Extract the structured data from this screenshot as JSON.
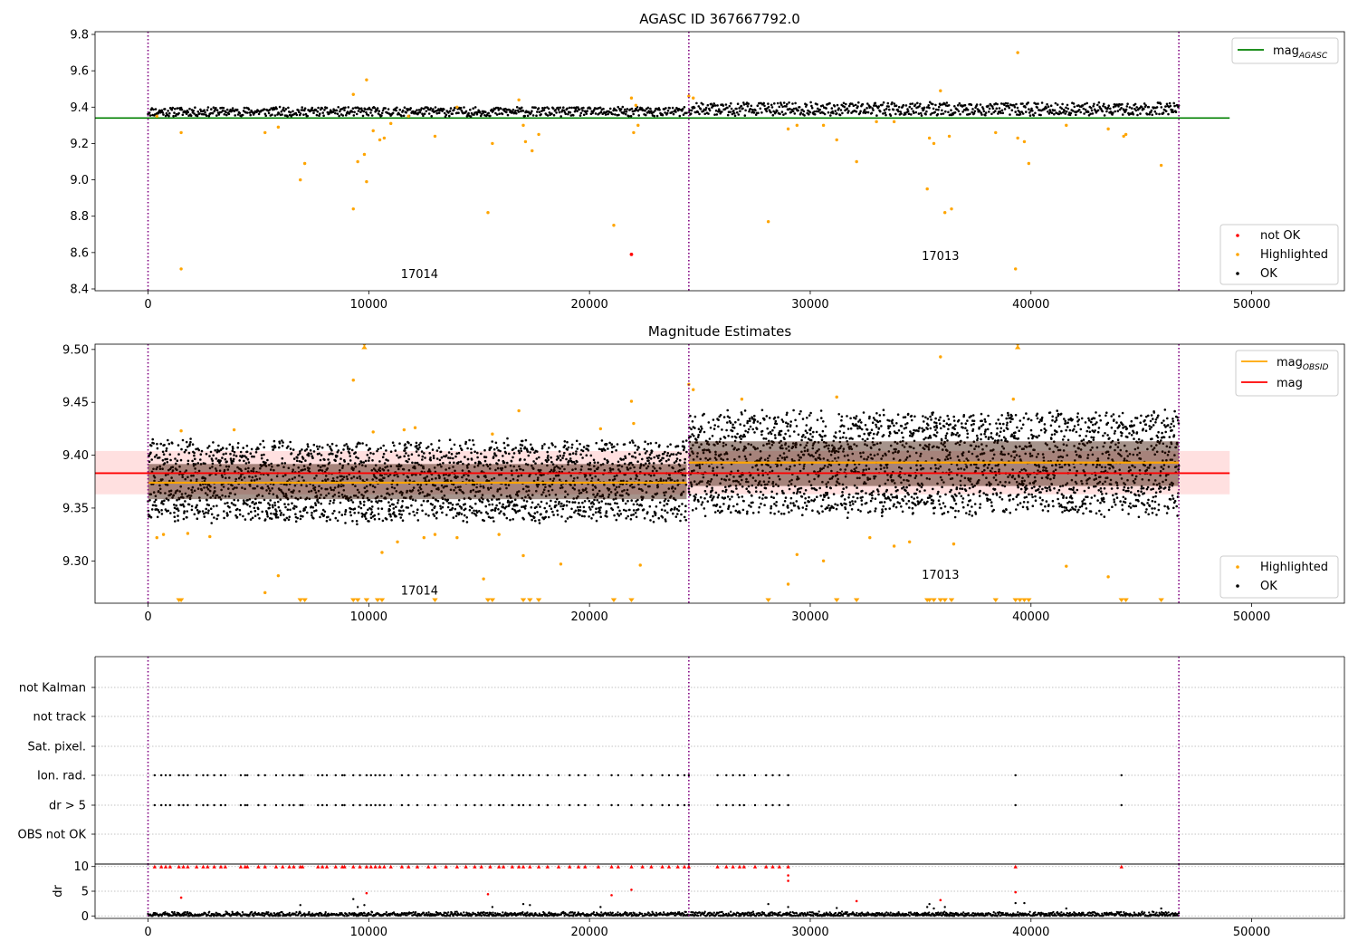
{
  "chart_data": [
    {
      "id": "agasc",
      "type": "scatter",
      "title": "AGASC ID 367667792.0",
      "xlim": [
        -2400,
        54200
      ],
      "ylim": [
        8.39,
        9.815
      ],
      "xticks": [
        0,
        10000,
        20000,
        30000,
        40000,
        50000
      ],
      "yticks": [
        8.4,
        8.6,
        8.8,
        9.0,
        9.2,
        9.4,
        9.6,
        9.8
      ],
      "ytick_labels": [
        "8.4",
        "8.6",
        "8.8",
        "9.0",
        "9.2",
        "9.4",
        "9.6",
        "9.8"
      ],
      "vlines": [
        0,
        24500,
        46700
      ],
      "obsids": [
        {
          "label": "17014",
          "x": 12300,
          "y": 8.46
        },
        {
          "label": "17013",
          "x": 35900,
          "y": 8.56
        }
      ],
      "hline": {
        "name": "mag_AGASC",
        "y": 9.34,
        "x_range": [
          -2400,
          49000
        ],
        "color": "#008000"
      },
      "ok_bands": [
        {
          "x0": 0,
          "x1": 24400,
          "center": 9.375,
          "half_width": 0.025
        },
        {
          "x0": 24500,
          "x1": 46700,
          "center": 9.39,
          "half_width": 0.035
        }
      ],
      "highlighted": [
        [
          400,
          9.35
        ],
        [
          1500,
          8.51
        ],
        [
          1500,
          9.26
        ],
        [
          5300,
          9.26
        ],
        [
          5900,
          9.29
        ],
        [
          6900,
          9.0
        ],
        [
          7100,
          9.09
        ],
        [
          9300,
          8.84
        ],
        [
          9300,
          9.47
        ],
        [
          9500,
          9.1
        ],
        [
          9800,
          9.14
        ],
        [
          9900,
          8.99
        ],
        [
          9900,
          9.55
        ],
        [
          10200,
          9.27
        ],
        [
          10500,
          9.22
        ],
        [
          10700,
          9.23
        ],
        [
          11000,
          9.31
        ],
        [
          11800,
          9.35
        ],
        [
          13000,
          9.24
        ],
        [
          14000,
          9.4
        ],
        [
          15400,
          8.82
        ],
        [
          15600,
          9.2
        ],
        [
          16800,
          9.44
        ],
        [
          17000,
          9.3
        ],
        [
          17100,
          9.21
        ],
        [
          17400,
          9.16
        ],
        [
          17700,
          9.25
        ],
        [
          21100,
          8.75
        ],
        [
          21900,
          9.45
        ],
        [
          22000,
          9.26
        ],
        [
          22200,
          9.3
        ],
        [
          22100,
          9.41
        ],
        [
          24500,
          9.46
        ],
        [
          24700,
          9.45
        ],
        [
          28100,
          8.77
        ],
        [
          29000,
          9.28
        ],
        [
          29400,
          9.3
        ],
        [
          30600,
          9.3
        ],
        [
          31200,
          9.22
        ],
        [
          32100,
          9.1
        ],
        [
          33000,
          9.32
        ],
        [
          33800,
          9.32
        ],
        [
          35300,
          8.95
        ],
        [
          35400,
          9.23
        ],
        [
          35600,
          9.2
        ],
        [
          35900,
          9.49
        ],
        [
          36100,
          8.82
        ],
        [
          36400,
          8.84
        ],
        [
          36300,
          9.24
        ],
        [
          38400,
          9.26
        ],
        [
          39300,
          8.51
        ],
        [
          39400,
          9.7
        ],
        [
          39400,
          9.23
        ],
        [
          39700,
          9.21
        ],
        [
          39900,
          9.09
        ],
        [
          41600,
          9.3
        ],
        [
          43500,
          9.28
        ],
        [
          44200,
          9.24
        ],
        [
          44300,
          9.25
        ],
        [
          45900,
          9.08
        ]
      ],
      "not_ok": [
        [
          21900,
          8.59
        ]
      ],
      "legend_top": [
        "mag_AGASC"
      ],
      "legend_bottom": [
        "not OK",
        "Highlighted",
        "OK"
      ]
    },
    {
      "id": "mag-estimates",
      "type": "scatter",
      "title": "Magnitude Estimates",
      "xlim": [
        -2400,
        54200
      ],
      "ylim": [
        9.26,
        9.505
      ],
      "xticks": [
        0,
        10000,
        20000,
        30000,
        40000,
        50000
      ],
      "yticks": [
        9.3,
        9.35,
        9.4,
        9.45,
        9.5
      ],
      "ytick_labels": [
        "9.30",
        "9.35",
        "9.40",
        "9.45",
        "9.50"
      ],
      "vlines": [
        0,
        24500,
        46700
      ],
      "obsids": [
        {
          "label": "17014",
          "x": 12300,
          "y": 9.268
        },
        {
          "label": "17013",
          "x": 35900,
          "y": 9.283
        }
      ],
      "mag_line": {
        "name": "mag",
        "y": 9.383,
        "band": [
          9.363,
          9.404
        ],
        "x_range": [
          -2400,
          49000
        ],
        "color": "#ff0000"
      },
      "mag_obsid": [
        {
          "x0": 0,
          "x1": 24400,
          "y": 9.374
        },
        {
          "x0": 24500,
          "x1": 46700,
          "y": 9.393
        }
      ],
      "ok_bands": [
        {
          "x0": 0,
          "x1": 24400,
          "center": 9.375,
          "half_width": 0.037
        },
        {
          "x0": 24500,
          "x1": 46700,
          "center": 9.392,
          "half_width": 0.047
        }
      ],
      "highlighted": [
        [
          400,
          9.322
        ],
        [
          700,
          9.325
        ],
        [
          1500,
          9.423
        ],
        [
          1800,
          9.326
        ],
        [
          2800,
          9.323
        ],
        [
          3900,
          9.424
        ],
        [
          5300,
          9.27
        ],
        [
          5900,
          9.286
        ],
        [
          9300,
          9.471
        ],
        [
          9800,
          9.505
        ],
        [
          10200,
          9.422
        ],
        [
          10600,
          9.308
        ],
        [
          11300,
          9.318
        ],
        [
          11600,
          9.424
        ],
        [
          12500,
          9.322
        ],
        [
          12100,
          9.426
        ],
        [
          13000,
          9.325
        ],
        [
          14000,
          9.322
        ],
        [
          15200,
          9.283
        ],
        [
          15600,
          9.42
        ],
        [
          15900,
          9.325
        ],
        [
          16800,
          9.442
        ],
        [
          17000,
          9.305
        ],
        [
          18700,
          9.297
        ],
        [
          20500,
          9.425
        ],
        [
          21900,
          9.451
        ],
        [
          22000,
          9.43
        ],
        [
          22300,
          9.296
        ],
        [
          24500,
          9.467
        ],
        [
          24700,
          9.462
        ],
        [
          26900,
          9.453
        ],
        [
          29000,
          9.278
        ],
        [
          29400,
          9.306
        ],
        [
          30600,
          9.3
        ],
        [
          31200,
          9.455
        ],
        [
          32700,
          9.322
        ],
        [
          33800,
          9.314
        ],
        [
          34500,
          9.318
        ],
        [
          35900,
          9.493
        ],
        [
          36500,
          9.316
        ],
        [
          39200,
          9.453
        ],
        [
          39400,
          9.505
        ],
        [
          41600,
          9.295
        ],
        [
          43500,
          9.285
        ]
      ],
      "below_axis_x": [
        1400,
        1500,
        6900,
        7100,
        9300,
        9500,
        9900,
        10400,
        10600,
        13000,
        15400,
        15600,
        17000,
        17300,
        17700,
        21100,
        21900,
        28100,
        31200,
        32100,
        35300,
        35400,
        35600,
        35900,
        36100,
        36400,
        38400,
        39300,
        39500,
        39700,
        39900,
        44100,
        44300,
        45900
      ],
      "legend_top": [
        "mag_OBSID",
        "mag"
      ],
      "legend_bottom": [
        "Highlighted",
        "OK"
      ]
    },
    {
      "id": "flags",
      "type": "scatter",
      "xlim": [
        -2400,
        54200
      ],
      "xticks": [
        0,
        10000,
        20000,
        30000,
        40000,
        50000
      ],
      "vlines": [
        0,
        24500,
        46700
      ],
      "categories": [
        "not Kalman",
        "not track",
        "Sat. pixel.",
        "Ion. rad.",
        "dr > 5",
        "OBS not OK"
      ],
      "flag_x": [
        300,
        600,
        800,
        1000,
        1400,
        1600,
        1800,
        2200,
        2500,
        2700,
        3000,
        3300,
        3500,
        4200,
        4400,
        4500,
        5000,
        5300,
        5800,
        6100,
        6400,
        6600,
        6900,
        7000,
        7700,
        7900,
        8100,
        8500,
        8800,
        8900,
        9300,
        9600,
        9900,
        10100,
        10300,
        10500,
        10700,
        11000,
        11500,
        11800,
        12200,
        12700,
        13000,
        13500,
        14000,
        14400,
        14800,
        15100,
        15500,
        15900,
        16100,
        16500,
        16800,
        17000,
        17300,
        17700,
        18100,
        18600,
        19100,
        19500,
        19800,
        20400,
        21000,
        21300,
        21900,
        22400,
        22800,
        23300,
        23600,
        24000,
        24300,
        24500,
        25800,
        26200,
        26500,
        26800,
        27000,
        27500,
        28000,
        28300,
        28600,
        29000,
        39300,
        44100
      ],
      "ion_x": [
        300,
        600,
        800,
        1000,
        1400,
        1600,
        1800,
        2200,
        2500,
        2700,
        3000,
        3300,
        3500,
        4200,
        4400,
        4500,
        5000,
        5300,
        5800,
        6100,
        6400,
        6600,
        6900,
        7000,
        7700,
        7900,
        8100,
        8500,
        8800,
        8900,
        9300,
        9600,
        9900,
        10100,
        10300,
        10500,
        10700,
        11000,
        11500,
        11800,
        12200,
        12700,
        13000,
        13500,
        14000,
        14400,
        14800,
        15100,
        15500,
        15900,
        16100,
        16500,
        16800,
        17000,
        17300,
        17700,
        18100,
        18600,
        19100,
        19500,
        19800,
        20400,
        21000,
        21300,
        21900,
        22400,
        22800,
        23300,
        23600,
        24000,
        24300,
        24500,
        25800,
        26200,
        26500,
        26800,
        27000,
        27500,
        28000,
        28300,
        28600,
        29000,
        39300,
        44100
      ]
    },
    {
      "id": "dr",
      "type": "scatter",
      "ylabel": "dr",
      "xlim": [
        -2400,
        54200
      ],
      "ylim": [
        -0.5,
        10.5
      ],
      "yticks": [
        0,
        5,
        10
      ],
      "ytick_labels": [
        "0",
        "5",
        "10"
      ],
      "xticks": [
        0,
        10000,
        20000,
        30000,
        40000,
        50000
      ],
      "xtick_labels": [
        "0",
        "10000",
        "20000",
        "30000",
        "40000",
        "50000"
      ],
      "vlines": [
        0,
        24500,
        46700
      ],
      "capped_x": [
        300,
        600,
        800,
        1000,
        1400,
        1600,
        1800,
        2200,
        2500,
        2700,
        3000,
        3300,
        3500,
        4200,
        4400,
        4500,
        5000,
        5300,
        5800,
        6100,
        6400,
        6600,
        6900,
        7000,
        7700,
        7900,
        8100,
        8500,
        8800,
        8900,
        9300,
        9600,
        9900,
        10100,
        10300,
        10500,
        10700,
        11000,
        11500,
        11800,
        12200,
        12700,
        13000,
        13500,
        14000,
        14400,
        14800,
        15100,
        15500,
        15900,
        16100,
        16500,
        16800,
        17000,
        17300,
        17700,
        18100,
        18600,
        19100,
        19500,
        19800,
        20400,
        21000,
        21300,
        21900,
        22400,
        22800,
        23300,
        23600,
        24000,
        24300,
        24500,
        25800,
        26200,
        26500,
        26800,
        27000,
        27500,
        28000,
        28300,
        28600,
        29000,
        39300,
        44100
      ],
      "red_points": [
        [
          1500,
          3.7
        ],
        [
          9900,
          4.6
        ],
        [
          15400,
          4.4
        ],
        [
          21000,
          4.2
        ],
        [
          21900,
          5.3
        ],
        [
          29000,
          8.2
        ],
        [
          29000,
          7.1
        ],
        [
          32100,
          3.0
        ],
        [
          35900,
          3.2
        ],
        [
          39300,
          4.8
        ]
      ],
      "black_points": [
        [
          6900,
          2.2
        ],
        [
          9300,
          3.4
        ],
        [
          9500,
          1.8
        ],
        [
          9800,
          2.2
        ],
        [
          15600,
          1.8
        ],
        [
          17000,
          2.4
        ],
        [
          17300,
          2.2
        ],
        [
          20500,
          1.8
        ],
        [
          28100,
          2.4
        ],
        [
          29000,
          1.8
        ],
        [
          31200,
          1.6
        ],
        [
          35300,
          1.8
        ],
        [
          35400,
          2.4
        ],
        [
          35600,
          1.5
        ],
        [
          36100,
          1.8
        ],
        [
          39300,
          2.6
        ],
        [
          39700,
          2.6
        ],
        [
          41600,
          1.5
        ],
        [
          45900,
          1.5
        ]
      ]
    }
  ]
}
